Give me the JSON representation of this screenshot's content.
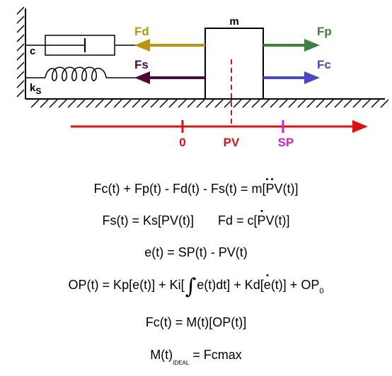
{
  "diagram": {
    "labels": {
      "mass": "m",
      "damper": "c",
      "spring": "k",
      "spring_sub": "S",
      "fd": "Fd",
      "fs": "Fs",
      "fp": "Fp",
      "fc": "Fc",
      "zero": "0",
      "pv": "PV",
      "sp": "SP"
    },
    "colors": {
      "fd": "#b8960f",
      "fs": "#4a0a3c",
      "fp": "#3f7f3f",
      "fc": "#4848c8",
      "axis": "#e01010",
      "sp": "#d020d0",
      "pv_line": "#e01010"
    }
  },
  "equations": {
    "eq1": {
      "left": "Fc(t) + Fp(t) - Fd(t) - Fs(t) = m[",
      "dd": "P",
      "mid": "V",
      "right": "(t)]"
    },
    "eq2": {
      "a": "Fs(t) = Ks[PV(t)]",
      "b_left": "Fd = c[",
      "b_dot": "P",
      "b_mid": "V",
      "b_right": "(t)]"
    },
    "eq3": "e(t) = SP(t) - PV(t)",
    "eq4": {
      "left": "OP(t) = Kp[e(t)] + Ki[",
      "integral": "∫",
      "mid": "e(t)dt] + Kd[",
      "edot": "e",
      "right": "(t)] + OP",
      "sub": "0"
    },
    "eq5": "Fc(t) = M(t)[OP(t)]",
    "eq6": {
      "left": "M(t)",
      "sub": "IDEAL",
      "right": " = Fcmax"
    }
  }
}
